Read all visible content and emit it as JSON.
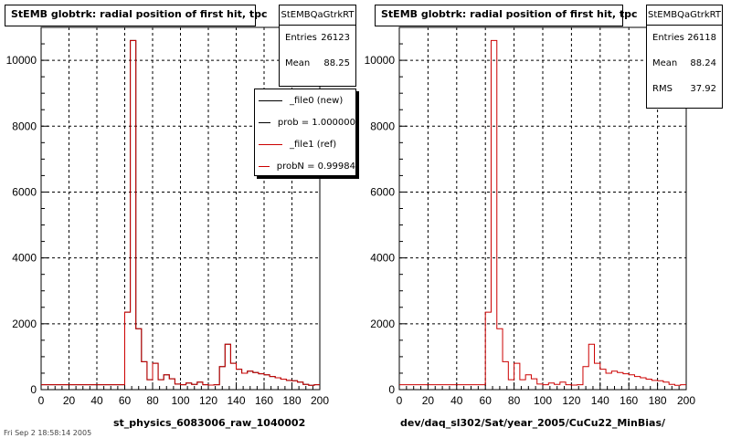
{
  "colors": {
    "new": "#000000",
    "ref": "#cc0000",
    "grid": "#000000"
  },
  "panels": [
    {
      "title": "StEMB globtrk: radial position of first hit, tpc",
      "stats": {
        "name": "StEMBQaGtrkRT",
        "rows": [
          {
            "label": "Entries",
            "value": "26123"
          },
          {
            "label": "Mean",
            "value": "88.25"
          }
        ]
      },
      "legend": [
        {
          "label": "_file0 (new)",
          "color": "#000000"
        },
        {
          "label": "prob = 1.000000",
          "color": "#000000"
        },
        {
          "label": "_file1 (ref)",
          "color": "#cc0000"
        },
        {
          "label": "probN = 0.99984",
          "color": "#cc0000"
        }
      ],
      "xtitle": "st_physics_6083006_raw_1040002"
    },
    {
      "title": "StEMB globtrk: radial position of first hit, tpc",
      "stats": {
        "name": "StEMBQaGtrkRT",
        "rows": [
          {
            "label": "Entries",
            "value": "26118"
          },
          {
            "label": "Mean",
            "value": "88.24"
          },
          {
            "label": "RMS",
            "value": "37.92"
          }
        ]
      },
      "xtitle": "dev/daq_sl302/Sat/year_2005/CuCu22_MinBias/"
    }
  ],
  "chart_data": [
    {
      "type": "bar",
      "title": "StEMB globtrk: radial position of first hit, tpc",
      "xlabel": "st_physics_6083006_raw_1040002",
      "ylabel": "",
      "xlim": [
        0,
        200
      ],
      "ylim": [
        0,
        11000
      ],
      "grid": true,
      "legend_position": "top-right",
      "x_ticks": [
        0,
        20,
        40,
        60,
        80,
        100,
        120,
        140,
        160,
        180,
        200
      ],
      "y_ticks": [
        0,
        2000,
        4000,
        6000,
        8000,
        10000
      ],
      "bin_width": 4,
      "bin_edges_start": 0,
      "series": [
        {
          "name": "_file0 (new)",
          "color": "#000000",
          "values": [
            150,
            150,
            150,
            150,
            150,
            150,
            150,
            150,
            150,
            150,
            150,
            150,
            150,
            150,
            150,
            2350,
            10600,
            1850,
            850,
            300,
            800,
            300,
            450,
            330,
            170,
            150,
            200,
            160,
            230,
            150,
            140,
            150,
            700,
            1380,
            800,
            620,
            500,
            560,
            520,
            480,
            450,
            400,
            360,
            320,
            280,
            270,
            230,
            160,
            130,
            150
          ]
        },
        {
          "name": "_file1 (ref)",
          "color": "#cc0000",
          "values": [
            150,
            150,
            150,
            150,
            150,
            150,
            150,
            150,
            150,
            150,
            150,
            150,
            150,
            150,
            150,
            2350,
            10600,
            1850,
            850,
            300,
            800,
            300,
            450,
            330,
            170,
            150,
            200,
            160,
            230,
            150,
            140,
            150,
            700,
            1380,
            800,
            620,
            500,
            560,
            520,
            480,
            450,
            400,
            360,
            320,
            280,
            270,
            230,
            160,
            130,
            150
          ]
        }
      ]
    },
    {
      "type": "bar",
      "title": "StEMB globtrk: radial position of first hit, tpc",
      "xlabel": "dev/daq_sl302/Sat/year_2005/CuCu22_MinBias/",
      "ylabel": "",
      "xlim": [
        0,
        200
      ],
      "ylim": [
        0,
        11000
      ],
      "grid": true,
      "x_ticks": [
        0,
        20,
        40,
        60,
        80,
        100,
        120,
        140,
        160,
        180,
        200
      ],
      "y_ticks": [
        0,
        2000,
        4000,
        6000,
        8000,
        10000
      ],
      "bin_width": 4,
      "bin_edges_start": 0,
      "series": [
        {
          "name": "",
          "color": "#cc0000",
          "values": [
            150,
            150,
            150,
            150,
            150,
            150,
            150,
            150,
            150,
            150,
            150,
            150,
            150,
            150,
            150,
            2350,
            10600,
            1850,
            850,
            300,
            800,
            300,
            450,
            330,
            170,
            150,
            200,
            160,
            230,
            150,
            140,
            150,
            700,
            1380,
            800,
            620,
            500,
            560,
            520,
            480,
            450,
            400,
            360,
            320,
            280,
            270,
            230,
            160,
            130,
            150
          ]
        }
      ]
    }
  ],
  "footer": "Fri Sep 2 18:58:14 2005"
}
